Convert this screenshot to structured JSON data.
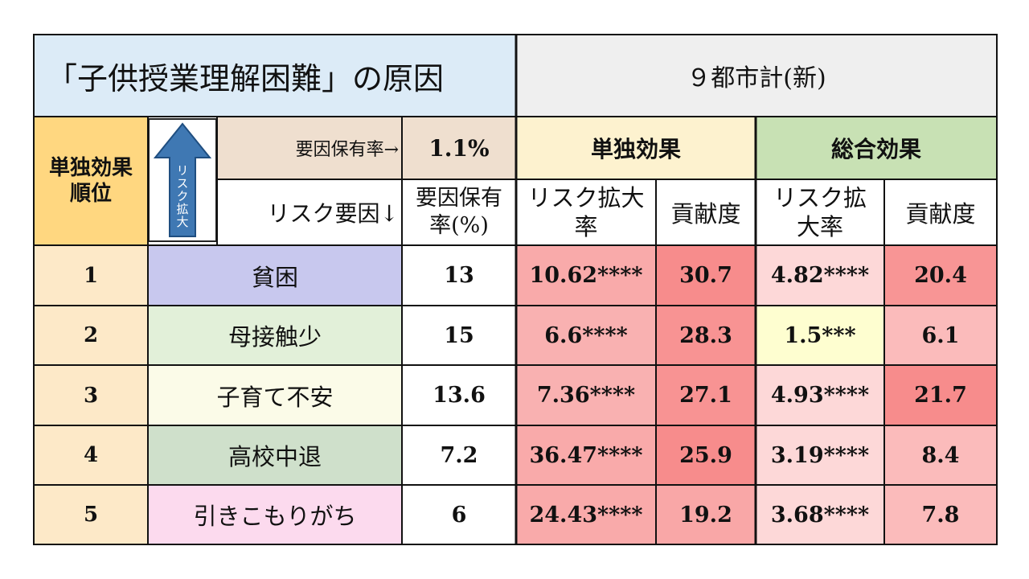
{
  "header": {
    "title": "「子供授業理解困難」の原因",
    "group": "９都市計(新)"
  },
  "subheader": {
    "rank_label": "単独効果順位",
    "arrow_text": "リスク拡大",
    "ratio_label": "要因保有率→",
    "ratio_value": "1.1%",
    "single_effect": "単独効果",
    "total_effect": "総合効果",
    "risk_factor_label": "リスク要因↓",
    "ratio_col": "要因保有率(%)",
    "risk_rate": "リスク拡大率",
    "contribution": "貢献度"
  },
  "rows": [
    {
      "rank": "1",
      "factor": "貧困",
      "ratio": "13",
      "s_rate": "10.62****",
      "s_contrib": "30.7",
      "t_rate": "4.82****",
      "t_contrib": "20.4"
    },
    {
      "rank": "2",
      "factor": "母接触少",
      "ratio": "15",
      "s_rate": "6.6****",
      "s_contrib": "28.3",
      "t_rate": "1.5***",
      "t_contrib": "6.1"
    },
    {
      "rank": "3",
      "factor": "子育て不安",
      "ratio": "13.6",
      "s_rate": "7.36****",
      "s_contrib": "27.1",
      "t_rate": "4.93****",
      "t_contrib": "21.7"
    },
    {
      "rank": "4",
      "factor": "高校中退",
      "ratio": "7.2",
      "s_rate": "36.47****",
      "s_contrib": "25.9",
      "t_rate": "3.19****",
      "t_contrib": "8.4"
    },
    {
      "rank": "5",
      "factor": "引きこもりがち",
      "ratio": "6",
      "s_rate": "24.43****",
      "s_contrib": "19.2",
      "t_rate": "3.68****",
      "t_contrib": "7.8"
    }
  ],
  "colors": {
    "title_bg": "#dcebf7",
    "group_bg": "#efefef",
    "rank_bg": "#fde9c8",
    "rank_header_bg": "#ffd780",
    "ratio_label_bg": "#efdfcf",
    "single_header_bg": "#fdf2cf",
    "total_header_bg": "#c8e1b4",
    "arrow_fill": "#3f78b3",
    "factor_bgs": [
      "#c8c8ee",
      "#e2f0d9",
      "#fbfbe8",
      "#cfe0cb",
      "#fcdaee"
    ],
    "s_rate_bgs": [
      "#f9aaaa",
      "#f9b1b1",
      "#f9b1b1",
      "#f9aaaa",
      "#f9aaaa"
    ],
    "s_contrib_bgs": [
      "#f78c8c",
      "#f89393",
      "#f89393",
      "#f78c8c",
      "#f9a7a7"
    ],
    "t_rate_bgs": [
      "#fdd8d8",
      "#fefed0",
      "#fdd8d8",
      "#fdd8d8",
      "#fdd8d8"
    ],
    "t_contrib_bgs": [
      "#f89595",
      "#fbbbbb",
      "#f78c8c",
      "#fbbbbb",
      "#fbbbbb"
    ]
  }
}
